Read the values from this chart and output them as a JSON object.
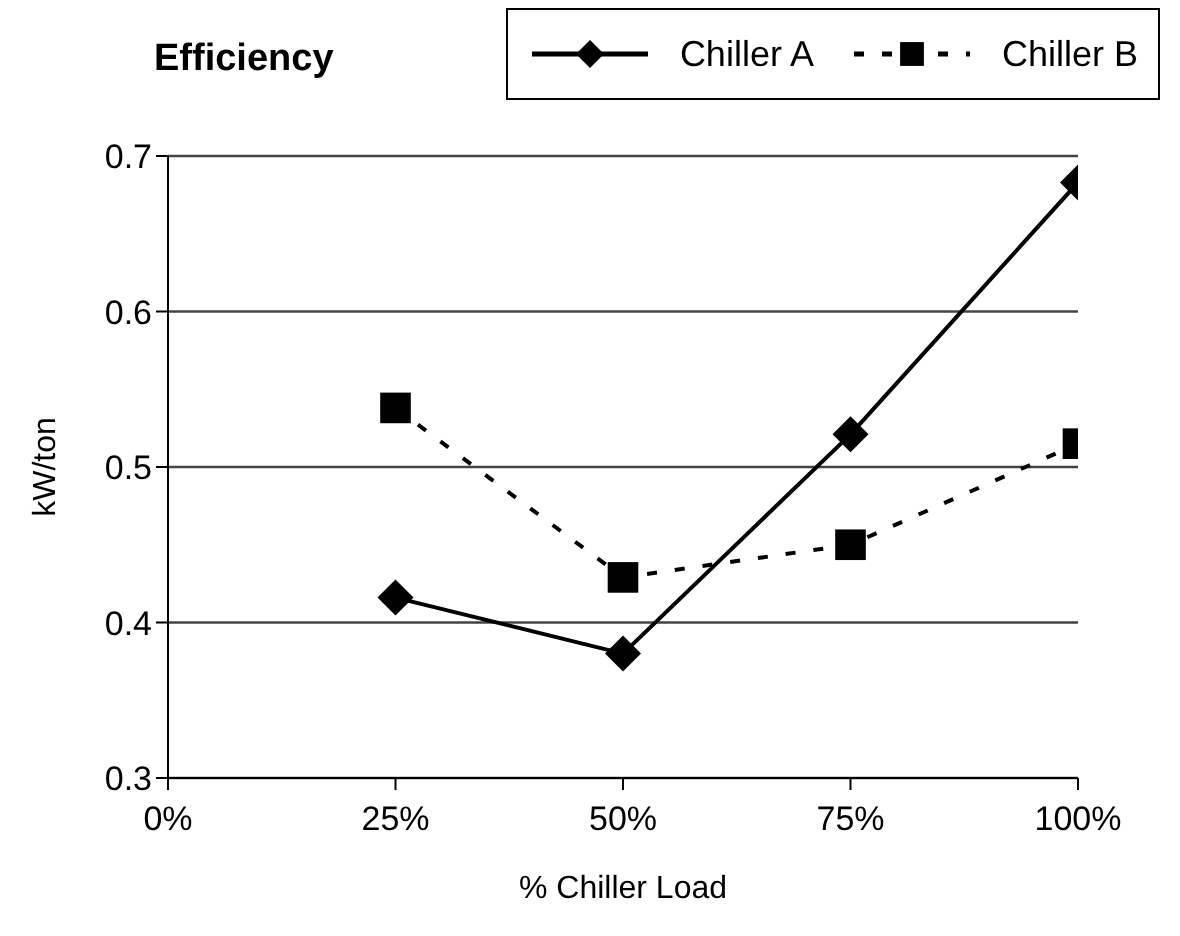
{
  "chart_data": {
    "type": "line",
    "title": "Efficiency",
    "xlabel": "% Chiller Load",
    "ylabel": "kW/ton",
    "x": [
      25,
      50,
      75,
      100
    ],
    "series": [
      {
        "name": "Chiller A",
        "color": "#000000",
        "values": [
          0.416,
          0.38,
          0.521,
          0.683
        ],
        "marker": "diamond",
        "line_style": "solid"
      },
      {
        "name": "Chiller B",
        "color": "#000000",
        "values": [
          0.538,
          0.429,
          0.45,
          0.515
        ],
        "marker": "square",
        "line_style": "dashed"
      }
    ],
    "xlim": [
      0,
      100
    ],
    "xticks": [
      {
        "value": 0,
        "label": "0%"
      },
      {
        "value": 25,
        "label": "25%"
      },
      {
        "value": 50,
        "label": "50%"
      },
      {
        "value": 75,
        "label": "75%"
      },
      {
        "value": 100,
        "label": "100%"
      }
    ],
    "ylim": [
      0.3,
      0.7
    ],
    "yticks": [
      0.3,
      0.4,
      0.5,
      0.6,
      0.7
    ],
    "grid": "y",
    "legend": "top right"
  }
}
